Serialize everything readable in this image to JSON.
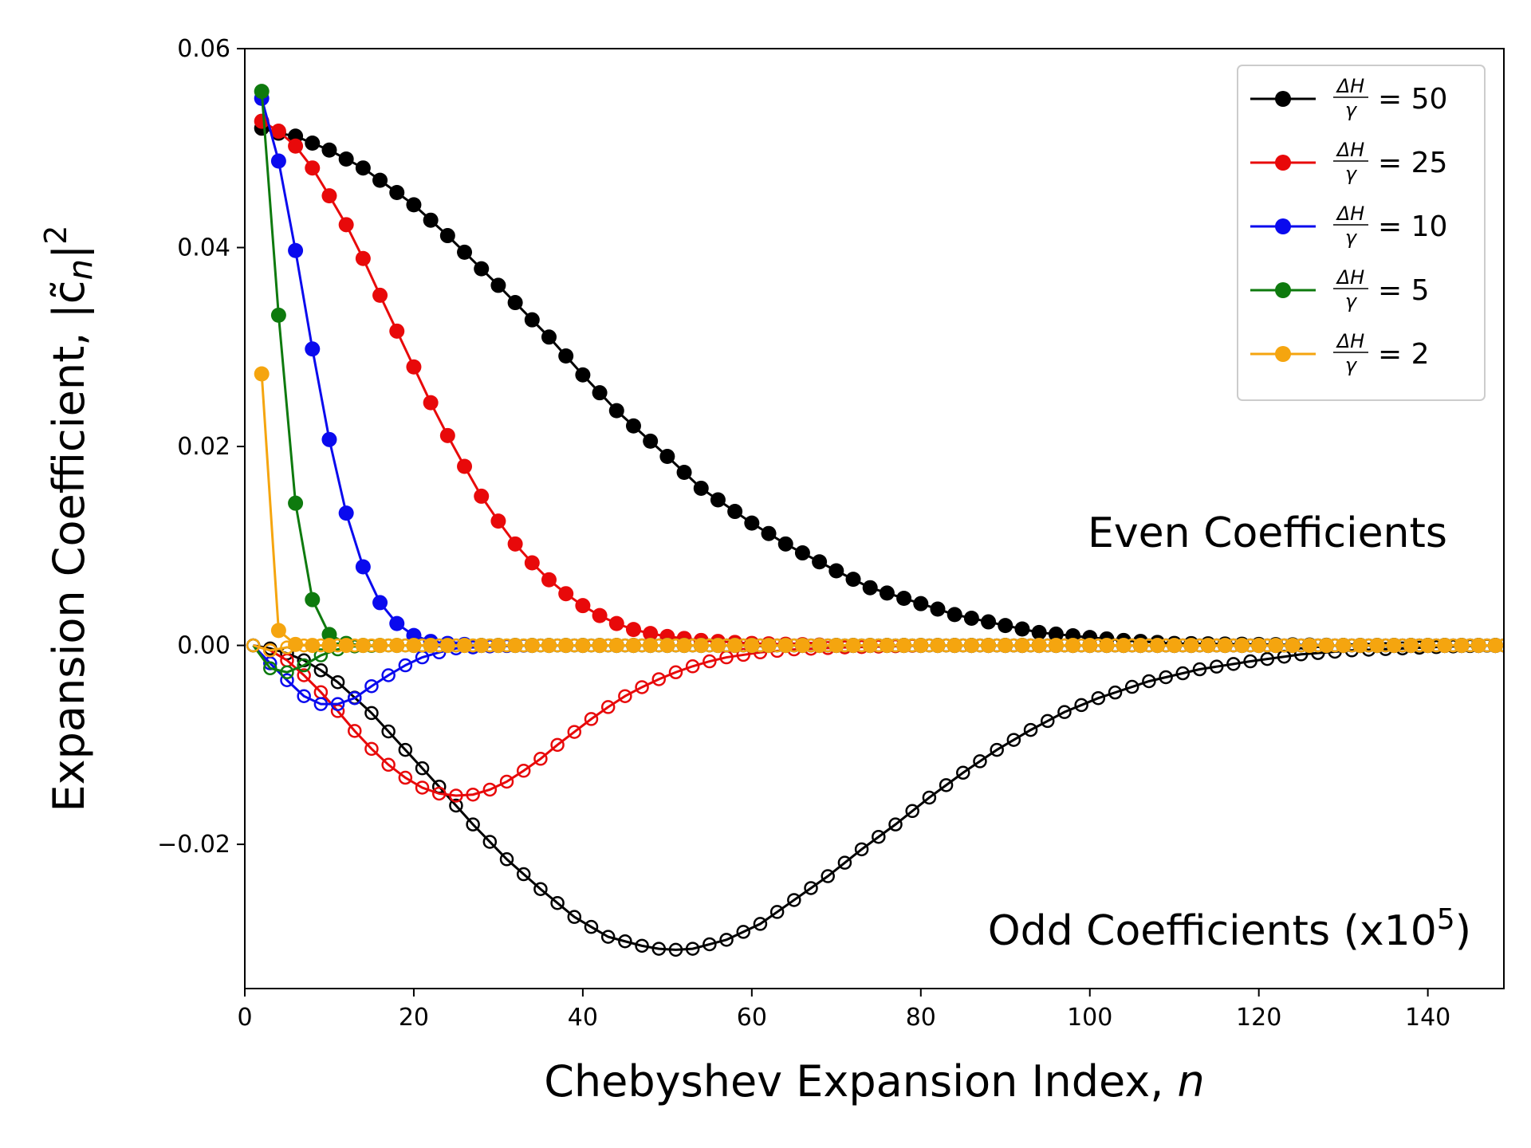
{
  "chart_data": {
    "type": "line",
    "xlabel": "Chebyshev Expansion Index, ",
    "xlabel_var": "n",
    "ylabel": "Expansion Coefficient, |c̃",
    "ylabel_sub": "n",
    "ylabel_tail": "|",
    "ylabel_sup": "2",
    "xlim": [
      0,
      149
    ],
    "ylim": [
      -0.0345,
      0.06
    ],
    "xticks": [
      0,
      20,
      40,
      60,
      80,
      100,
      120,
      140
    ],
    "xtick_labels": [
      "0",
      "20",
      "40",
      "60",
      "80",
      "100",
      "120",
      "140"
    ],
    "yticks": [
      -0.02,
      0.0,
      0.02,
      0.04,
      0.06
    ],
    "ytick_labels": [
      "−0.02",
      "0.00",
      "0.02",
      "0.04",
      "0.06"
    ],
    "grid": false,
    "legend_placement": "top-right",
    "annotations": {
      "even": "Even Coefficients",
      "odd": "Odd Coefficients (x10",
      "odd_sup": "5",
      "odd_tail": ")"
    },
    "legend_prefix_num": "ΔH",
    "legend_prefix_den": "γ",
    "x_max_index": 149,
    "series": [
      {
        "name": "= 50",
        "color": "#000000",
        "even_points": [
          [
            2,
            0.052
          ],
          [
            4,
            0.0515
          ],
          [
            6,
            0.0512
          ],
          [
            8,
            0.0505
          ],
          [
            10,
            0.0498
          ],
          [
            14,
            0.048
          ],
          [
            20,
            0.0443
          ],
          [
            24,
            0.0412
          ],
          [
            30,
            0.0362
          ],
          [
            36,
            0.031
          ],
          [
            40,
            0.0272
          ],
          [
            44,
            0.0236
          ],
          [
            50,
            0.019
          ],
          [
            54,
            0.0158
          ],
          [
            60,
            0.0123
          ],
          [
            64,
            0.0102
          ],
          [
            70,
            0.0075
          ],
          [
            74,
            0.0058
          ],
          [
            80,
            0.0042
          ],
          [
            84,
            0.0031
          ],
          [
            90,
            0.002
          ],
          [
            94,
            0.0013
          ],
          [
            100,
            0.0008
          ],
          [
            104,
            0.0005
          ],
          [
            110,
            0.0002
          ],
          [
            120,
            0.0001
          ],
          [
            130,
            0.0
          ],
          [
            149,
            0.0
          ]
        ],
        "odd_points": [
          [
            1,
            0.0
          ],
          [
            3,
            -0.0003
          ],
          [
            5,
            -0.0008
          ],
          [
            7,
            -0.0015
          ],
          [
            9,
            -0.0025
          ],
          [
            11,
            -0.0037
          ],
          [
            15,
            -0.0068
          ],
          [
            19,
            -0.0105
          ],
          [
            23,
            -0.0142
          ],
          [
            27,
            -0.018
          ],
          [
            31,
            -0.0215
          ],
          [
            35,
            -0.0245
          ],
          [
            39,
            -0.0273
          ],
          [
            43,
            -0.0293
          ],
          [
            47,
            -0.0302
          ],
          [
            49,
            -0.0305
          ],
          [
            51,
            -0.0306
          ],
          [
            53,
            -0.0305
          ],
          [
            57,
            -0.0296
          ],
          [
            61,
            -0.028
          ],
          [
            65,
            -0.0256
          ],
          [
            69,
            -0.0232
          ],
          [
            73,
            -0.0205
          ],
          [
            77,
            -0.018
          ],
          [
            81,
            -0.0153
          ],
          [
            85,
            -0.0128
          ],
          [
            89,
            -0.0105
          ],
          [
            93,
            -0.0085
          ],
          [
            97,
            -0.0067
          ],
          [
            101,
            -0.0053
          ],
          [
            107,
            -0.0036
          ],
          [
            113,
            -0.0024
          ],
          [
            119,
            -0.0016
          ],
          [
            125,
            -0.0009
          ],
          [
            131,
            -0.0005
          ],
          [
            137,
            -0.0003
          ],
          [
            143,
            -0.0001
          ],
          [
            149,
            0.0
          ]
        ]
      },
      {
        "name": "= 25",
        "color": "#e8090a",
        "even_points": [
          [
            2,
            0.0527
          ],
          [
            4,
            0.0517
          ],
          [
            6,
            0.0502
          ],
          [
            8,
            0.048
          ],
          [
            10,
            0.0452
          ],
          [
            12,
            0.0423
          ],
          [
            14,
            0.0389
          ],
          [
            16,
            0.0352
          ],
          [
            18,
            0.0316
          ],
          [
            20,
            0.028
          ],
          [
            22,
            0.0244
          ],
          [
            24,
            0.0211
          ],
          [
            26,
            0.018
          ],
          [
            28,
            0.015
          ],
          [
            30,
            0.0125
          ],
          [
            32,
            0.0102
          ],
          [
            34,
            0.0083
          ],
          [
            36,
            0.0066
          ],
          [
            38,
            0.0052
          ],
          [
            40,
            0.004
          ],
          [
            42,
            0.003
          ],
          [
            44,
            0.0022
          ],
          [
            46,
            0.0016
          ],
          [
            48,
            0.0012
          ],
          [
            50,
            0.0009
          ],
          [
            54,
            0.0005
          ],
          [
            60,
            0.0002
          ],
          [
            70,
            0.0
          ],
          [
            149,
            0.0
          ]
        ],
        "odd_points": [
          [
            1,
            0.0
          ],
          [
            3,
            -0.0005
          ],
          [
            5,
            -0.0015
          ],
          [
            7,
            -0.003
          ],
          [
            9,
            -0.0047
          ],
          [
            11,
            -0.0066
          ],
          [
            13,
            -0.0086
          ],
          [
            15,
            -0.0104
          ],
          [
            17,
            -0.012
          ],
          [
            19,
            -0.0133
          ],
          [
            21,
            -0.0143
          ],
          [
            23,
            -0.0149
          ],
          [
            25,
            -0.0151
          ],
          [
            27,
            -0.015
          ],
          [
            29,
            -0.0145
          ],
          [
            31,
            -0.0137
          ],
          [
            33,
            -0.0126
          ],
          [
            35,
            -0.0114
          ],
          [
            37,
            -0.01
          ],
          [
            39,
            -0.0087
          ],
          [
            41,
            -0.0074
          ],
          [
            43,
            -0.0062
          ],
          [
            45,
            -0.0051
          ],
          [
            47,
            -0.0042
          ],
          [
            49,
            -0.0034
          ],
          [
            51,
            -0.0027
          ],
          [
            53,
            -0.0021
          ],
          [
            55,
            -0.0016
          ],
          [
            57,
            -0.0012
          ],
          [
            61,
            -0.0007
          ],
          [
            65,
            -0.0004
          ],
          [
            71,
            -0.0002
          ],
          [
            81,
            0.0
          ],
          [
            149,
            0.0
          ]
        ]
      },
      {
        "name": "= 10",
        "color": "#0a0aee",
        "even_points": [
          [
            2,
            0.055
          ],
          [
            4,
            0.0487
          ],
          [
            6,
            0.0397
          ],
          [
            8,
            0.0298
          ],
          [
            10,
            0.0207
          ],
          [
            12,
            0.0133
          ],
          [
            14,
            0.0079
          ],
          [
            16,
            0.0043
          ],
          [
            18,
            0.0022
          ],
          [
            20,
            0.001
          ],
          [
            22,
            0.0004
          ],
          [
            24,
            0.0002
          ],
          [
            28,
            0.0
          ],
          [
            149,
            0.0
          ]
        ],
        "odd_points": [
          [
            1,
            0.0
          ],
          [
            3,
            -0.0018
          ],
          [
            5,
            -0.0035
          ],
          [
            7,
            -0.0051
          ],
          [
            9,
            -0.0059
          ],
          [
            11,
            -0.0059
          ],
          [
            13,
            -0.0053
          ],
          [
            15,
            -0.0041
          ],
          [
            17,
            -0.003
          ],
          [
            19,
            -0.002
          ],
          [
            21,
            -0.0012
          ],
          [
            23,
            -0.0007
          ],
          [
            25,
            -0.0003
          ],
          [
            29,
            -0.0001
          ],
          [
            35,
            0.0
          ],
          [
            149,
            0.0
          ]
        ]
      },
      {
        "name": "= 5",
        "color": "#0e7a0e",
        "even_points": [
          [
            2,
            0.0557
          ],
          [
            4,
            0.0332
          ],
          [
            6,
            0.0143
          ],
          [
            8,
            0.0046
          ],
          [
            10,
            0.0011
          ],
          [
            12,
            0.0002
          ],
          [
            14,
            0.0
          ],
          [
            149,
            0.0
          ]
        ],
        "odd_points": [
          [
            1,
            0.0
          ],
          [
            3,
            -0.0023
          ],
          [
            5,
            -0.0027
          ],
          [
            7,
            -0.002
          ],
          [
            9,
            -0.001
          ],
          [
            11,
            -0.0004
          ],
          [
            13,
            -0.0001
          ],
          [
            17,
            0.0
          ],
          [
            149,
            0.0
          ]
        ]
      },
      {
        "name": "= 2",
        "color": "#f5a50f",
        "even_points": [
          [
            2,
            0.0273
          ],
          [
            4,
            0.0015
          ],
          [
            6,
            0.0001
          ],
          [
            8,
            0.0
          ],
          [
            149,
            0.0
          ]
        ],
        "odd_points": [
          [
            1,
            0.0
          ],
          [
            3,
            -0.0005
          ],
          [
            5,
            -0.0002
          ],
          [
            7,
            0.0
          ],
          [
            149,
            0.0
          ]
        ]
      }
    ]
  }
}
